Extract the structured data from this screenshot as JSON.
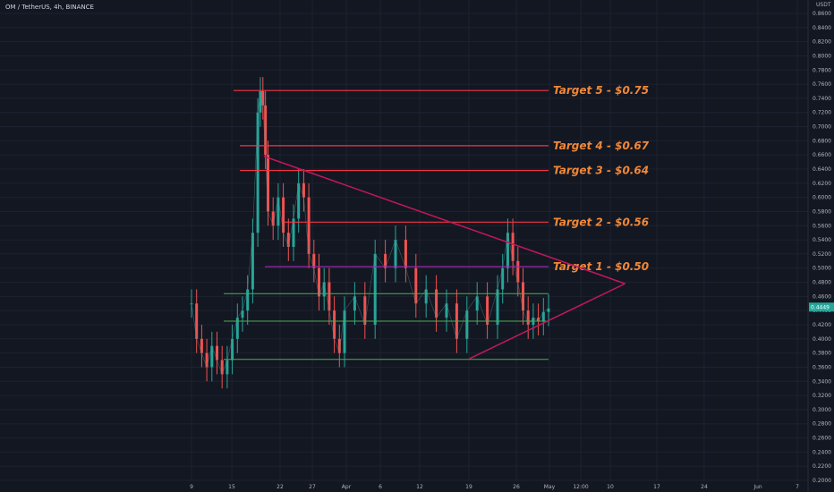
{
  "header": {
    "symbol_title": "OM / TetherUS, 4h, BINANCE"
  },
  "chart_data": {
    "type": "line",
    "ylim": [
      0.2,
      0.86
    ],
    "y_unit_label": "USDT",
    "y_ticks": [
      "0.8600",
      "0.8400",
      "0.8200",
      "0.8000",
      "0.7800",
      "0.7600",
      "0.7400",
      "0.7200",
      "0.7000",
      "0.6800",
      "0.6600",
      "0.6400",
      "0.6200",
      "0.6000",
      "0.5800",
      "0.5600",
      "0.5400",
      "0.5200",
      "0.5000",
      "0.4800",
      "0.4600",
      "0.4400",
      "0.4200",
      "0.4000",
      "0.3800",
      "0.3600",
      "0.3400",
      "0.3200",
      "0.3000",
      "0.2800",
      "0.2600",
      "0.2400",
      "0.2200",
      "0.2000"
    ],
    "x_ticks": [
      "9",
      "15",
      "22",
      "27",
      "Apr",
      "6",
      "12",
      "19",
      "26",
      "May",
      "12:00",
      "10",
      "17",
      "24",
      "Jun",
      "7"
    ],
    "current_price": "0.4449",
    "targets": [
      {
        "label": "Target 5 - $0.75",
        "value": 0.751
      },
      {
        "label": "Target 4 - $0.67",
        "value": 0.673
      },
      {
        "label": "Target 3 - $0.64",
        "value": 0.638
      },
      {
        "label": "Target 2 - $0.56",
        "value": 0.565
      },
      {
        "label": "Target 1 - $0.50",
        "value": 0.502
      }
    ],
    "support_levels": [
      0.464,
      0.425,
      0.371
    ],
    "triangle": {
      "upper": [
        [
          1.42,
          0.658
        ],
        [
          8.5,
          0.478
        ]
      ],
      "lower": [
        [
          5.45,
          0.372
        ],
        [
          8.5,
          0.478
        ]
      ]
    },
    "price_series": {
      "x": [
        0.0,
        0.1,
        0.2,
        0.3,
        0.4,
        0.5,
        0.6,
        0.7,
        0.8,
        0.9,
        1.0,
        1.1,
        1.2,
        1.3,
        1.35,
        1.4,
        1.45,
        1.5,
        1.6,
        1.7,
        1.8,
        1.9,
        2.0,
        2.1,
        2.2,
        2.3,
        2.4,
        2.5,
        2.6,
        2.7,
        2.8,
        2.9,
        3.0,
        3.2,
        3.4,
        3.6,
        3.8,
        4.0,
        4.2,
        4.4,
        4.6,
        4.8,
        5.0,
        5.2,
        5.4,
        5.6,
        5.8,
        6.0,
        6.1,
        6.2,
        6.3,
        6.4,
        6.5,
        6.6,
        6.7,
        6.8,
        6.9,
        7.0
      ],
      "y": [
        0.45,
        0.4,
        0.38,
        0.36,
        0.39,
        0.37,
        0.35,
        0.37,
        0.4,
        0.43,
        0.44,
        0.47,
        0.55,
        0.72,
        0.75,
        0.73,
        0.66,
        0.58,
        0.56,
        0.6,
        0.55,
        0.53,
        0.57,
        0.62,
        0.6,
        0.52,
        0.5,
        0.46,
        0.48,
        0.44,
        0.4,
        0.38,
        0.44,
        0.46,
        0.42,
        0.52,
        0.5,
        0.54,
        0.5,
        0.45,
        0.47,
        0.43,
        0.45,
        0.4,
        0.44,
        0.46,
        0.42,
        0.47,
        0.5,
        0.55,
        0.51,
        0.48,
        0.44,
        0.42,
        0.43,
        0.425,
        0.438,
        0.443
      ]
    }
  }
}
